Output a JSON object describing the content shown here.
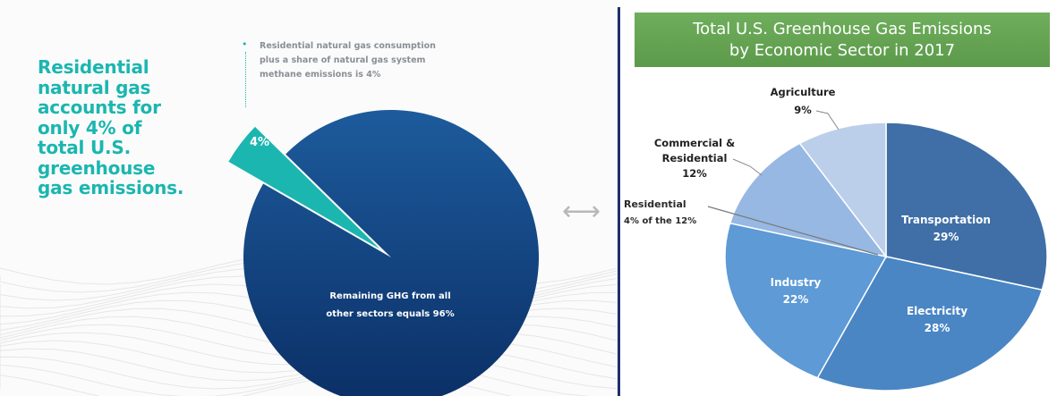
{
  "left": {
    "headline": "Residential\nnatural gas\naccounts for\nonly 4% of\ntotal U.S.\ngreenhouse\ngas emissions.",
    "note": "Residential natural gas consumption\nplus a share of natural gas system\nmethane emissions is 4%",
    "arrow_glyph": "⟷"
  },
  "right": {
    "title": "Total U.S. Greenhouse Gas Emissions\nby Economic Sector in 2017",
    "callout": [
      "Residential",
      "4% of the 12%"
    ]
  },
  "colors": {
    "teal": "#1bb6b0",
    "navy_dark": "#0b2f66",
    "navy_light": "#1d5b9c",
    "banner_green": "#6aa95a"
  },
  "chart_data": [
    {
      "type": "pie",
      "title": "",
      "slices": [
        {
          "label": "4%",
          "value": 4,
          "color": "#1bb6b0"
        },
        {
          "label": "Remaining GHG from all other sectors equals 96%",
          "value": 96,
          "color": "#0d3b7a"
        }
      ]
    },
    {
      "type": "pie",
      "title": "Total U.S. Greenhouse Gas Emissions by Economic Sector in 2017",
      "slices": [
        {
          "label": "Transportation",
          "value": 29,
          "display": "29%",
          "color": "#3f6fa6"
        },
        {
          "label": "Electricity",
          "value": 28,
          "display": "28%",
          "color": "#4a86c4"
        },
        {
          "label": "Industry",
          "value": 22,
          "display": "22%",
          "color": "#5d9ad6"
        },
        {
          "label": "Commercial & Residential",
          "value": 12,
          "display": "12%",
          "color": "#97b8e2"
        },
        {
          "label": "Agriculture",
          "value": 9,
          "display": "9%",
          "color": "#bccfea"
        }
      ]
    }
  ]
}
